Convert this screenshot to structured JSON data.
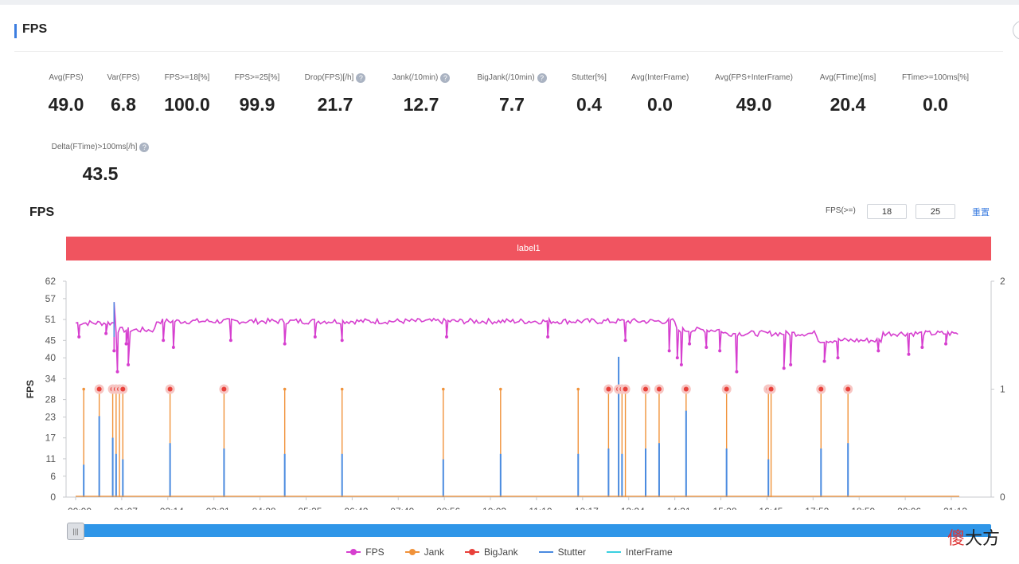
{
  "header": {
    "title": "FPS"
  },
  "metrics": [
    {
      "label": "Avg(FPS)",
      "value": "49.0",
      "info": false
    },
    {
      "label": "Var(FPS)",
      "value": "6.8",
      "info": false
    },
    {
      "label": "FPS>=18[%]",
      "value": "100.0",
      "info": false
    },
    {
      "label": "FPS>=25[%]",
      "value": "99.9",
      "info": false
    },
    {
      "label": "Drop(FPS)[/h]",
      "value": "21.7",
      "info": true
    },
    {
      "label": "Jank(/10min)",
      "value": "12.7",
      "info": true
    },
    {
      "label": "BigJank(/10min)",
      "value": "7.7",
      "info": true
    },
    {
      "label": "Stutter[%]",
      "value": "0.4",
      "info": false
    },
    {
      "label": "Avg(InterFrame)",
      "value": "0.0",
      "info": false
    },
    {
      "label": "Avg(FPS+InterFrame)",
      "value": "49.0",
      "info": false
    },
    {
      "label": "Avg(FTime)[ms]",
      "value": "20.4",
      "info": false
    },
    {
      "label": "FTime>=100ms[%]",
      "value": "0.0",
      "info": false
    },
    {
      "label": "Delta(FTime)>100ms[/h]",
      "value": "43.5",
      "info": true
    }
  ],
  "section": {
    "title": "FPS",
    "threshold_label": "FPS(>=)",
    "threshold_1": "18",
    "threshold_2": "25",
    "reset_label": "重置"
  },
  "band_label": "label1",
  "colors": {
    "fps": "#d63fcf",
    "jank": "#f0923a",
    "bigjank": "#e8403a",
    "stutter": "#4a8be0",
    "interframe": "#3ad0e0",
    "band": "#f0545f"
  },
  "chart_data": {
    "type": "line",
    "ylabel": "FPS",
    "y_ticks": [
      0,
      6,
      11,
      17,
      23,
      28,
      34,
      40,
      45,
      51,
      57,
      62
    ],
    "ylim": [
      0,
      62
    ],
    "y2_ticks": [
      0,
      1,
      2
    ],
    "y2lim": [
      0,
      2
    ],
    "x_ticks": [
      "00:00",
      "01:07",
      "02:14",
      "03:21",
      "04:28",
      "05:35",
      "06:42",
      "07:49",
      "08:56",
      "10:03",
      "11:10",
      "12:17",
      "13:24",
      "14:31",
      "15:38",
      "16:45",
      "17:52",
      "18:59",
      "20:06",
      "21:13"
    ],
    "x_range_minutes": [
      0,
      1310
    ],
    "fps_segments": [
      {
        "from": 0,
        "to": 60,
        "fps": 50
      },
      {
        "from": 60,
        "to": 120,
        "fps": 48
      },
      {
        "from": 120,
        "to": 890,
        "fps": 50.5
      },
      {
        "from": 890,
        "to": 960,
        "fps": 48
      },
      {
        "from": 960,
        "to": 1100,
        "fps": 47
      },
      {
        "from": 1100,
        "to": 1195,
        "fps": 45
      },
      {
        "from": 1195,
        "to": 1310,
        "fps": 47
      }
    ],
    "fps_dips": [
      {
        "x": 5,
        "y": 46
      },
      {
        "x": 45,
        "y": 47
      },
      {
        "x": 57,
        "y": 42
      },
      {
        "x": 62,
        "y": 36
      },
      {
        "x": 75,
        "y": 44
      },
      {
        "x": 78,
        "y": 38
      },
      {
        "x": 130,
        "y": 45
      },
      {
        "x": 145,
        "y": 43
      },
      {
        "x": 230,
        "y": 45
      },
      {
        "x": 310,
        "y": 44
      },
      {
        "x": 355,
        "y": 46
      },
      {
        "x": 395,
        "y": 45
      },
      {
        "x": 550,
        "y": 46
      },
      {
        "x": 700,
        "y": 46
      },
      {
        "x": 815,
        "y": 45
      },
      {
        "x": 880,
        "y": 42
      },
      {
        "x": 892,
        "y": 40
      },
      {
        "x": 898,
        "y": 38
      },
      {
        "x": 910,
        "y": 44
      },
      {
        "x": 935,
        "y": 43
      },
      {
        "x": 955,
        "y": 42
      },
      {
        "x": 980,
        "y": 36
      },
      {
        "x": 1050,
        "y": 37
      },
      {
        "x": 1060,
        "y": 38
      },
      {
        "x": 1110,
        "y": 39
      },
      {
        "x": 1130,
        "y": 40
      },
      {
        "x": 1190,
        "y": 42
      },
      {
        "x": 1235,
        "y": 41
      },
      {
        "x": 1255,
        "y": 43
      },
      {
        "x": 1290,
        "y": 44
      }
    ],
    "spike_up": {
      "x": 57,
      "y": 56
    },
    "jank_events": [
      {
        "x": 12,
        "big": false
      },
      {
        "x": 35,
        "big": true
      },
      {
        "x": 55,
        "big": true
      },
      {
        "x": 60,
        "big": true
      },
      {
        "x": 65,
        "big": true
      },
      {
        "x": 70,
        "big": true
      },
      {
        "x": 140,
        "big": true
      },
      {
        "x": 220,
        "big": true
      },
      {
        "x": 310,
        "big": false
      },
      {
        "x": 395,
        "big": false
      },
      {
        "x": 545,
        "big": false
      },
      {
        "x": 630,
        "big": false
      },
      {
        "x": 745,
        "big": false
      },
      {
        "x": 790,
        "big": true
      },
      {
        "x": 805,
        "big": true
      },
      {
        "x": 810,
        "big": true
      },
      {
        "x": 815,
        "big": true
      },
      {
        "x": 845,
        "big": true
      },
      {
        "x": 865,
        "big": true
      },
      {
        "x": 905,
        "big": true
      },
      {
        "x": 965,
        "big": true
      },
      {
        "x": 1027,
        "big": true
      },
      {
        "x": 1031,
        "big": true
      },
      {
        "x": 1105,
        "big": true
      },
      {
        "x": 1145,
        "big": true
      }
    ],
    "stutter_events": [
      {
        "x": 12,
        "v": 0.3
      },
      {
        "x": 35,
        "v": 0.75
      },
      {
        "x": 55,
        "v": 0.55
      },
      {
        "x": 60,
        "v": 0.4
      },
      {
        "x": 70,
        "v": 0.35
      },
      {
        "x": 140,
        "v": 0.5
      },
      {
        "x": 220,
        "v": 0.45
      },
      {
        "x": 310,
        "v": 0.4
      },
      {
        "x": 395,
        "v": 0.4
      },
      {
        "x": 545,
        "v": 0.35
      },
      {
        "x": 630,
        "v": 0.4
      },
      {
        "x": 745,
        "v": 0.4
      },
      {
        "x": 790,
        "v": 0.45
      },
      {
        "x": 805,
        "v": 1.3
      },
      {
        "x": 810,
        "v": 0.4
      },
      {
        "x": 845,
        "v": 0.45
      },
      {
        "x": 865,
        "v": 0.5
      },
      {
        "x": 905,
        "v": 0.8
      },
      {
        "x": 965,
        "v": 0.45
      },
      {
        "x": 1027,
        "v": 0.35
      },
      {
        "x": 1105,
        "v": 0.45
      },
      {
        "x": 1145,
        "v": 0.5
      }
    ],
    "legend": [
      "FPS",
      "Jank",
      "BigJank",
      "Stutter",
      "InterFrame"
    ]
  },
  "legend": {
    "fps": "FPS",
    "jank": "Jank",
    "bigjank": "BigJank",
    "stutter": "Stutter",
    "interframe": "InterFrame"
  },
  "watermark": {
    "a": "傻",
    "b": "大方"
  }
}
